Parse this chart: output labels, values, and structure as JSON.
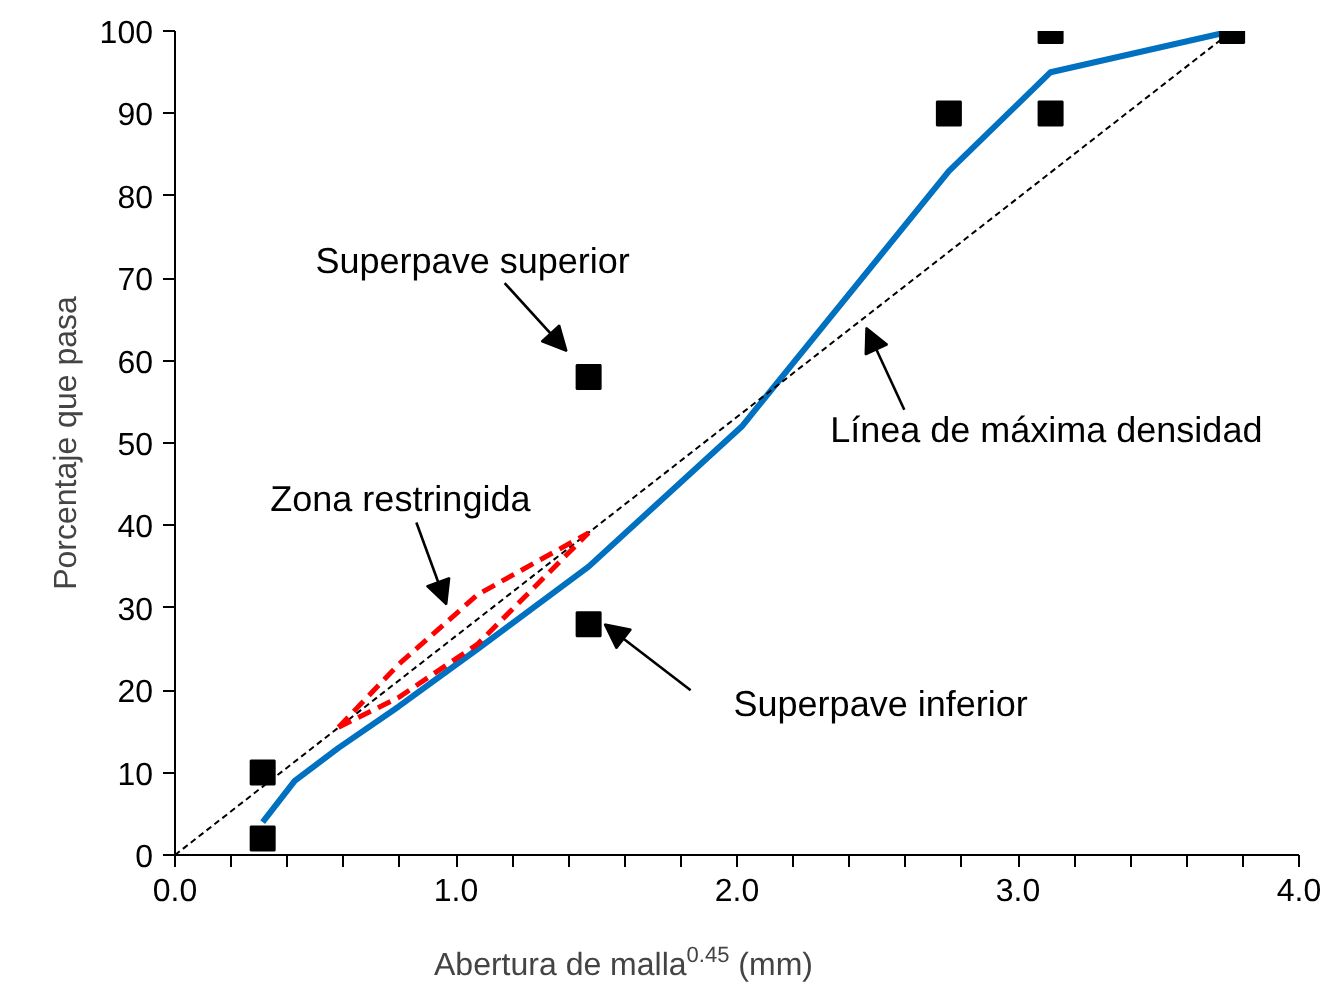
{
  "chart_data": {
    "type": "line",
    "xlabel": "Abertura de malla$^{0.45}$ (mm)",
    "ylabel": "Porcentaje que pasa",
    "xlim": [
      0,
      4
    ],
    "ylim": [
      0,
      100
    ],
    "xticks": [
      {
        "value": 0,
        "label": "0.0"
      },
      {
        "value": 0.2,
        "label": null
      },
      {
        "value": 0.4,
        "label": null
      },
      {
        "value": 0.6,
        "label": null
      },
      {
        "value": 0.8,
        "label": null
      },
      {
        "value": 1,
        "label": "1.0"
      },
      {
        "value": 1.2,
        "label": null
      },
      {
        "value": 1.4,
        "label": null
      },
      {
        "value": 1.6,
        "label": null
      },
      {
        "value": 1.8,
        "label": null
      },
      {
        "value": 2,
        "label": "2.0"
      },
      {
        "value": 2.2,
        "label": null
      },
      {
        "value": 2.4,
        "label": null
      },
      {
        "value": 2.6,
        "label": null
      },
      {
        "value": 2.8,
        "label": null
      },
      {
        "value": 3,
        "label": "3.0"
      },
      {
        "value": 3.2,
        "label": null
      },
      {
        "value": 3.4,
        "label": null
      },
      {
        "value": 3.6,
        "label": null
      },
      {
        "value": 3.8,
        "label": null
      },
      {
        "value": 4,
        "label": "4.0"
      }
    ],
    "yticks": [
      0,
      10,
      20,
      30,
      40,
      50,
      60,
      70,
      80,
      90,
      100
    ],
    "grid": false,
    "series": [
      {
        "color": "#0070c0",
        "line_style": "solid",
        "x": [
          0.312,
          0.426,
          0.582,
          0.795,
          1.077,
          1.472,
          2.017,
          2.754,
          3.116,
          3.762
        ],
        "values": [
          4,
          9,
          13,
          18,
          25,
          35,
          52,
          83,
          95,
          100
        ]
      },
      {
        "type": "scatter",
        "color": "#000000",
        "marker": "square",
        "x": [
          0.312,
          0.312,
          1.472,
          1.472,
          2.754,
          3.116,
          3.116,
          3.762
        ],
        "values": [
          2,
          10,
          28,
          58,
          90,
          90,
          100,
          100
        ]
      },
      {
        "color": "#000000",
        "line_style": "dotted",
        "x": [
          0,
          3.762
        ],
        "values": [
          0,
          100
        ]
      },
      {
        "color": "#ff0000",
        "line_style": "dashed",
        "x": [
          0.582,
          0.795,
          1.077,
          1.472
        ],
        "values": [
          15.5,
          23.1,
          31.6,
          39.1
        ]
      },
      {
        "color": "#ff0000",
        "line_style": "dashed",
        "x": [
          0.582,
          0.795,
          1.077,
          1.472
        ],
        "values": [
          15.5,
          19.1,
          25.6,
          39.1
        ]
      }
    ],
    "annotations": [
      {
        "text": "Superpave superior",
        "x": 1.472,
        "y": 58
      },
      {
        "text": "Zona restringida",
        "x": 0.98,
        "y": 28.7
      },
      {
        "text": "Superpave inferior",
        "x": 1.472,
        "y": 28
      },
      {
        "text": "Línea de máxima densidad",
        "x": 2.453,
        "y": 65.2
      }
    ]
  }
}
